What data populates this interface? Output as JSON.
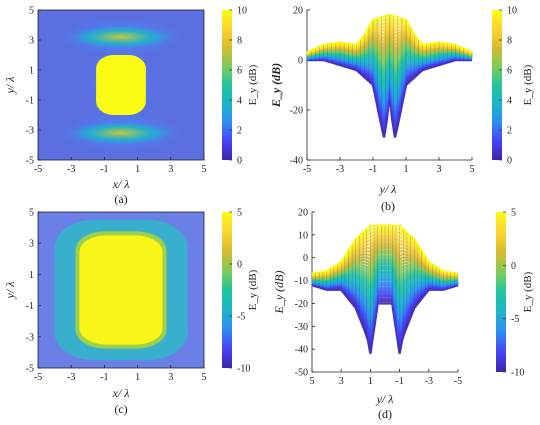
{
  "figure": {
    "panels": [
      {
        "label": "(a)"
      },
      {
        "label": "(b)"
      },
      {
        "label": "(c)"
      },
      {
        "label": "(d)"
      }
    ]
  },
  "colors": {
    "colormap": [
      "#3e26a8",
      "#4743f8",
      "#2d8ef1",
      "#1cb5c9",
      "#21c59f",
      "#7fcc58",
      "#d7ba2f",
      "#fcd52e",
      "#f9fb15"
    ],
    "background": "#ffffff",
    "axis": "#222222"
  },
  "chart_data": [
    {
      "panel": "(a)",
      "type": "heatmap",
      "xlabel": "x/ λ",
      "ylabel": "y/ λ",
      "xticks": [
        "-5",
        "-3",
        "-1",
        "1",
        "3",
        "5"
      ],
      "yticks": [
        "5",
        "3",
        "1",
        "-1",
        "-3",
        "-5"
      ],
      "xlim": [
        -5,
        5
      ],
      "ylim": [
        -5,
        5
      ],
      "colorbar": {
        "label": "E_y (dB)",
        "ticks": [
          "10",
          "8",
          "6",
          "4",
          "2",
          "0"
        ],
        "range": [
          0,
          10
        ]
      },
      "features": [
        {
          "shape": "central-lobe",
          "x_range": [
            -1.5,
            1.5
          ],
          "y_range": [
            -2,
            2
          ],
          "level_db": 10
        },
        {
          "shape": "arc-band",
          "y_center": 3.2,
          "x_range": [
            -3.5,
            3.5
          ],
          "level_db": 6
        },
        {
          "shape": "arc-band",
          "y_center": -3.2,
          "x_range": [
            -3.5,
            3.5
          ],
          "level_db": 6
        },
        {
          "shape": "background",
          "level_db": 0
        }
      ]
    },
    {
      "panel": "(b)",
      "type": "area",
      "xlabel": "y/ λ",
      "ylabel": "E_y (dB)",
      "xticks": [
        "-5",
        "-3",
        "-1",
        "1",
        "3",
        "5"
      ],
      "yticks": [
        "20",
        "0",
        "-20",
        "-40"
      ],
      "xlim": [
        -5,
        5
      ],
      "ylim": [
        -40,
        20
      ],
      "colorbar": {
        "label": "E_y (dB)",
        "ticks": [
          "10",
          "8",
          "6",
          "4",
          "2",
          "0"
        ],
        "range": [
          0,
          10
        ]
      },
      "series": [
        {
          "x": [
            -5,
            -4,
            -3,
            -2,
            -1.5,
            -1,
            0,
            1,
            1.5,
            2,
            3,
            4,
            5
          ],
          "values": [
            3,
            6,
            7,
            6,
            10,
            16,
            18,
            16,
            10,
            6,
            7,
            6,
            3
          ]
        },
        {
          "x": [
            -5,
            -4,
            -3,
            -2,
            -1,
            -0.5,
            -0.3,
            0,
            0.3,
            0.5,
            1,
            2,
            3,
            4,
            5
          ],
          "values": [
            0,
            0,
            -2,
            -4,
            -10,
            -26,
            -32,
            -14,
            -32,
            -26,
            -10,
            -4,
            -2,
            0,
            0
          ]
        }
      ]
    },
    {
      "panel": "(c)",
      "type": "heatmap",
      "xlabel": "x/ λ",
      "ylabel": "y/ λ",
      "xticks": [
        "-5",
        "-3",
        "-1",
        "1",
        "3",
        "5"
      ],
      "yticks": [
        "5",
        "3",
        "1",
        "-1",
        "-3",
        "-5"
      ],
      "xlim": [
        -5,
        5
      ],
      "ylim": [
        -5,
        5
      ],
      "colorbar": {
        "label": "E_y (dB)",
        "ticks": [
          "5",
          "0",
          "-5",
          "-10"
        ],
        "range": [
          -10,
          5
        ]
      },
      "features": [
        {
          "shape": "central-lobe",
          "x_range": [
            -2.5,
            2.5
          ],
          "y_range": [
            -3.5,
            3.5
          ],
          "level_db": 5
        },
        {
          "shape": "halo",
          "x_range": [
            -4,
            4
          ],
          "y_range": [
            -4.5,
            4.5
          ],
          "level_db": 0
        },
        {
          "shape": "background",
          "level_db": -6
        }
      ]
    },
    {
      "panel": "(d)",
      "type": "area",
      "xlabel": "y/ λ",
      "ylabel": "E_y (dB)",
      "xticks": [
        "5",
        "3",
        "1",
        "-1",
        "-3",
        "-5"
      ],
      "yticks": [
        "20",
        "10",
        "0",
        "-10",
        "-20",
        "-30",
        "-40",
        "-50"
      ],
      "xlim": [
        5,
        -5
      ],
      "ylim": [
        -50,
        20
      ],
      "colorbar": {
        "label": "E_y (dB)",
        "ticks": [
          "5",
          "0",
          "-5",
          "-10"
        ],
        "range": [
          -10,
          5
        ]
      },
      "series": [
        {
          "x": [
            5,
            4,
            3,
            2,
            1,
            0,
            -1,
            -2,
            -3,
            -4,
            -5
          ],
          "values": [
            -7,
            -6,
            -2,
            8,
            14,
            14,
            14,
            8,
            -2,
            -6,
            -7
          ]
        },
        {
          "x": [
            5,
            4,
            3,
            2,
            1.2,
            1,
            0.5,
            -0.5,
            -1,
            -1.2,
            -2,
            -3,
            -4,
            -5
          ],
          "values": [
            -12,
            -14,
            -14,
            -22,
            -35,
            -42,
            -20,
            -20,
            -42,
            -35,
            -22,
            -14,
            -14,
            -12
          ]
        }
      ]
    }
  ]
}
